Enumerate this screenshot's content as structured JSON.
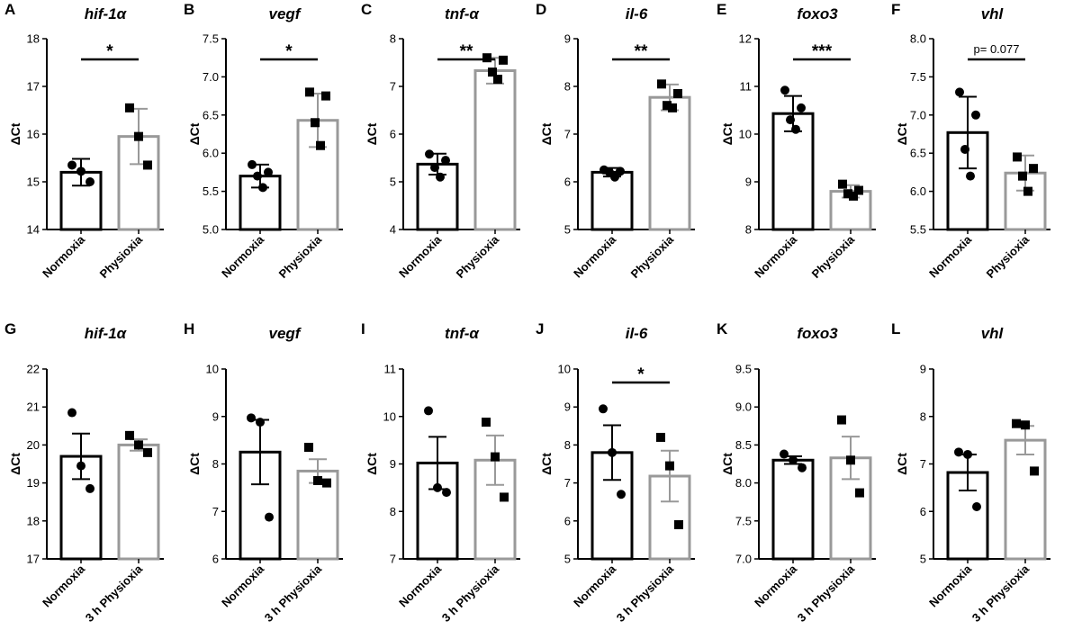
{
  "colors": {
    "normoxia": "#000000",
    "physioxia": "#999999"
  },
  "chart_data": [
    {
      "label": "A",
      "title": "hif-1α",
      "type": "bar",
      "ylabel": "ΔCt",
      "ylim": [
        14,
        18
      ],
      "yticks": [
        14,
        15,
        16,
        17,
        18
      ],
      "tick_labels": [
        "14",
        "15",
        "16",
        "17",
        "18"
      ],
      "categories": [
        "Normoxia",
        "Physioxia"
      ],
      "values": [
        15.2,
        15.95
      ],
      "errors": [
        0.28,
        0.58
      ],
      "points": [
        [
          15.35,
          15.22,
          15.0
        ],
        [
          16.55,
          15.95,
          15.35
        ]
      ],
      "markers": [
        "circle",
        "square"
      ],
      "significance": "*"
    },
    {
      "label": "B",
      "title": "vegf",
      "type": "bar",
      "ylabel": "ΔCt",
      "ylim": [
        5.0,
        7.5
      ],
      "yticks": [
        5.0,
        5.5,
        6.0,
        6.5,
        7.0,
        7.5
      ],
      "tick_labels": [
        "5.0",
        "5.5",
        "6.0",
        "6.5",
        "7.0",
        "7.5"
      ],
      "categories": [
        "Normoxia",
        "Physioxia"
      ],
      "values": [
        5.7,
        6.43
      ],
      "errors": [
        0.15,
        0.35
      ],
      "points": [
        [
          5.85,
          5.75,
          5.7,
          5.55
        ],
        [
          6.8,
          6.75,
          6.4,
          6.1
        ]
      ],
      "markers": [
        "circle",
        "square"
      ],
      "significance": "*"
    },
    {
      "label": "C",
      "title": "tnf-α",
      "type": "bar",
      "ylabel": "ΔCt",
      "ylim": [
        4,
        8
      ],
      "yticks": [
        4,
        5,
        6,
        7,
        8
      ],
      "tick_labels": [
        "4",
        "5",
        "6",
        "7",
        "8"
      ],
      "categories": [
        "Normoxia",
        "Physioxia"
      ],
      "values": [
        5.37,
        7.33
      ],
      "errors": [
        0.22,
        0.27
      ],
      "points": [
        [
          5.58,
          5.45,
          5.3,
          5.1
        ],
        [
          7.6,
          7.55,
          7.3,
          7.15
        ]
      ],
      "markers": [
        "circle",
        "square"
      ],
      "significance": "**"
    },
    {
      "label": "D",
      "title": "il-6",
      "type": "bar",
      "ylabel": "ΔCt",
      "ylim": [
        5,
        9
      ],
      "yticks": [
        5,
        6,
        7,
        8,
        9
      ],
      "tick_labels": [
        "5",
        "6",
        "7",
        "8",
        "9"
      ],
      "categories": [
        "Normoxia",
        "Physioxia"
      ],
      "values": [
        6.2,
        7.77
      ],
      "errors": [
        0.09,
        0.27
      ],
      "points": [
        [
          6.25,
          6.22,
          6.2,
          6.1
        ],
        [
          8.05,
          7.85,
          7.6,
          7.55
        ]
      ],
      "markers": [
        "circle",
        "square"
      ],
      "significance": "**"
    },
    {
      "label": "E",
      "title": "foxo3",
      "type": "bar",
      "ylabel": "ΔCt",
      "ylim": [
        8,
        12
      ],
      "yticks": [
        8,
        9,
        10,
        11,
        12
      ],
      "tick_labels": [
        "8",
        "9",
        "10",
        "11",
        "12"
      ],
      "categories": [
        "Normoxia",
        "Physioxia"
      ],
      "values": [
        10.43,
        8.8
      ],
      "errors": [
        0.37,
        0.13
      ],
      "points": [
        [
          10.92,
          10.55,
          10.3,
          10.1
        ],
        [
          8.95,
          8.82,
          8.75,
          8.7
        ]
      ],
      "markers": [
        "circle",
        "square"
      ],
      "significance": "***"
    },
    {
      "label": "F",
      "title": "vhl",
      "type": "bar",
      "ylabel": "ΔCt",
      "ylim": [
        5.5,
        8.0
      ],
      "yticks": [
        5.5,
        6.0,
        6.5,
        7.0,
        7.5,
        8.0
      ],
      "tick_labels": [
        "5.5",
        "6.0",
        "6.5",
        "7.0",
        "7.5",
        "8.0"
      ],
      "categories": [
        "Normoxia",
        "Physioxia"
      ],
      "values": [
        6.77,
        6.24
      ],
      "errors": [
        0.47,
        0.23
      ],
      "points": [
        [
          7.3,
          7.0,
          6.55,
          6.2
        ],
        [
          6.45,
          6.3,
          6.2,
          6.0
        ]
      ],
      "markers": [
        "circle",
        "square"
      ],
      "significance": "p= 0.077"
    },
    {
      "label": "G",
      "title": "hif-1α",
      "type": "bar",
      "ylabel": "ΔCt",
      "ylim": [
        17,
        22
      ],
      "yticks": [
        17,
        18,
        19,
        20,
        21,
        22
      ],
      "tick_labels": [
        "17",
        "18",
        "19",
        "20",
        "21",
        "22"
      ],
      "categories": [
        "Normoxia",
        "3 h Physioxia"
      ],
      "values": [
        19.7,
        20.0
      ],
      "errors": [
        0.6,
        0.15
      ],
      "points": [
        [
          20.85,
          19.45,
          18.85
        ],
        [
          20.25,
          20.0,
          19.8
        ]
      ],
      "markers": [
        "circle",
        "square"
      ],
      "significance": ""
    },
    {
      "label": "H",
      "title": "vegf",
      "type": "bar",
      "ylabel": "ΔCt",
      "ylim": [
        6,
        10
      ],
      "yticks": [
        6,
        7,
        8,
        9,
        10
      ],
      "tick_labels": [
        "6",
        "7",
        "8",
        "9",
        "10"
      ],
      "categories": [
        "Normoxia",
        "3 h Physioxia"
      ],
      "values": [
        8.25,
        7.85
      ],
      "errors": [
        0.68,
        0.25
      ],
      "points": [
        [
          8.97,
          8.88,
          6.88
        ],
        [
          8.35,
          7.65,
          7.6
        ]
      ],
      "markers": [
        "circle",
        "square"
      ],
      "significance": ""
    },
    {
      "label": "I",
      "title": "tnf-α",
      "type": "bar",
      "ylabel": "ΔCt",
      "ylim": [
        7,
        11
      ],
      "yticks": [
        7,
        8,
        9,
        10,
        11
      ],
      "tick_labels": [
        "7",
        "8",
        "9",
        "10",
        "11"
      ],
      "categories": [
        "Normoxia",
        "3 h Physioxia"
      ],
      "values": [
        9.02,
        9.08
      ],
      "errors": [
        0.55,
        0.52
      ],
      "points": [
        [
          10.12,
          8.5,
          8.4
        ],
        [
          9.88,
          9.15,
          8.3
        ]
      ],
      "markers": [
        "circle",
        "square"
      ],
      "significance": ""
    },
    {
      "label": "J",
      "title": "il-6",
      "type": "bar",
      "ylabel": "ΔCt",
      "ylim": [
        5,
        10
      ],
      "yticks": [
        5,
        6,
        7,
        8,
        9,
        10
      ],
      "tick_labels": [
        "5",
        "6",
        "7",
        "8",
        "9",
        "10"
      ],
      "categories": [
        "Normoxia",
        "3 h Physioxia"
      ],
      "values": [
        7.8,
        7.18
      ],
      "errors": [
        0.72,
        0.67
      ],
      "points": [
        [
          8.95,
          7.8,
          6.7
        ],
        [
          8.2,
          7.45,
          5.9
        ]
      ],
      "markers": [
        "circle",
        "square"
      ],
      "significance": "*"
    },
    {
      "label": "K",
      "title": "foxo3",
      "type": "bar",
      "ylabel": "ΔCt",
      "ylim": [
        7.0,
        9.5
      ],
      "yticks": [
        7.0,
        7.5,
        8.0,
        8.5,
        9.0,
        9.5
      ],
      "tick_labels": [
        "7.0",
        "7.5",
        "8.0",
        "8.5",
        "9.0",
        "9.5"
      ],
      "categories": [
        "Normoxia",
        "3 h Physioxia"
      ],
      "values": [
        8.3,
        8.33
      ],
      "errors": [
        0.05,
        0.28
      ],
      "points": [
        [
          8.38,
          8.3,
          8.2
        ],
        [
          8.83,
          8.3,
          7.87
        ]
      ],
      "markers": [
        "circle",
        "square"
      ],
      "significance": ""
    },
    {
      "label": "L",
      "title": "vhl",
      "type": "bar",
      "ylabel": "ΔCt",
      "ylim": [
        5,
        9
      ],
      "yticks": [
        5,
        6,
        7,
        8,
        9
      ],
      "tick_labels": [
        "5",
        "6",
        "7",
        "8",
        "9"
      ],
      "categories": [
        "Normoxia",
        "3 h Physioxia"
      ],
      "values": [
        6.82,
        7.5
      ],
      "errors": [
        0.38,
        0.3
      ],
      "points": [
        [
          7.25,
          7.2,
          6.1
        ],
        [
          7.85,
          7.82,
          6.85
        ]
      ],
      "markers": [
        "circle",
        "square"
      ],
      "significance": ""
    }
  ]
}
